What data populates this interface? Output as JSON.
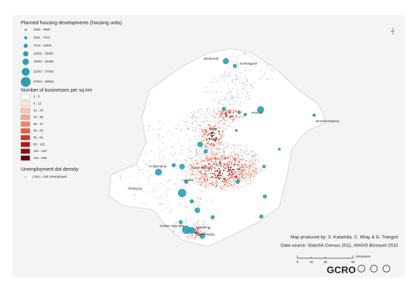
{
  "legend": {
    "housing": {
      "title": "Planned housing developments (housing units)",
      "items": [
        "1000 - 3500",
        "3501 - 7472",
        "7473 - 11000",
        "11001 - 15000",
        "15001 - 22366",
        "22367 - 37000",
        "37001 - 60000"
      ]
    },
    "businesses": {
      "title": "Number of businesses per sq km",
      "items": [
        "1 - 5",
        "6 - 12",
        "13 - 23",
        "24 - 35",
        "36 - 47",
        "48 - 64",
        "65 - 82",
        "83 - 103",
        "104 - 130",
        "131 - 188"
      ],
      "colors": [
        "#ffffff",
        "#fee5d9",
        "#fcc5ae",
        "#fca588",
        "#fb8060",
        "#f15a3f",
        "#da3226",
        "#b8151c",
        "#8e0b13",
        "#67000d"
      ]
    },
    "unemployment": {
      "title": "Unemployment dot density",
      "item": "1 Dot = 100 Unemployed"
    }
  },
  "places": [
    "Winterveld",
    "Soshanguve",
    "Pretoria",
    "Bronkhorstspruit",
    "Midrand",
    "Krugersdorp",
    "Johannesburg",
    "Lenasia",
    "Khutsong",
    "Golden High Way",
    "Sebokeng",
    "Vereeniging"
  ],
  "credits": {
    "produced": "Map produced by: S. Katamba, C. Wray & G. Trangoš",
    "source": "Data source: StatsSA Census 2011, AfriGIS Bizcount 2010"
  },
  "scale": {
    "ticks": [
      "0",
      "15",
      "30",
      "60"
    ],
    "unit": "Kilometres"
  },
  "logo": "GCRO"
}
